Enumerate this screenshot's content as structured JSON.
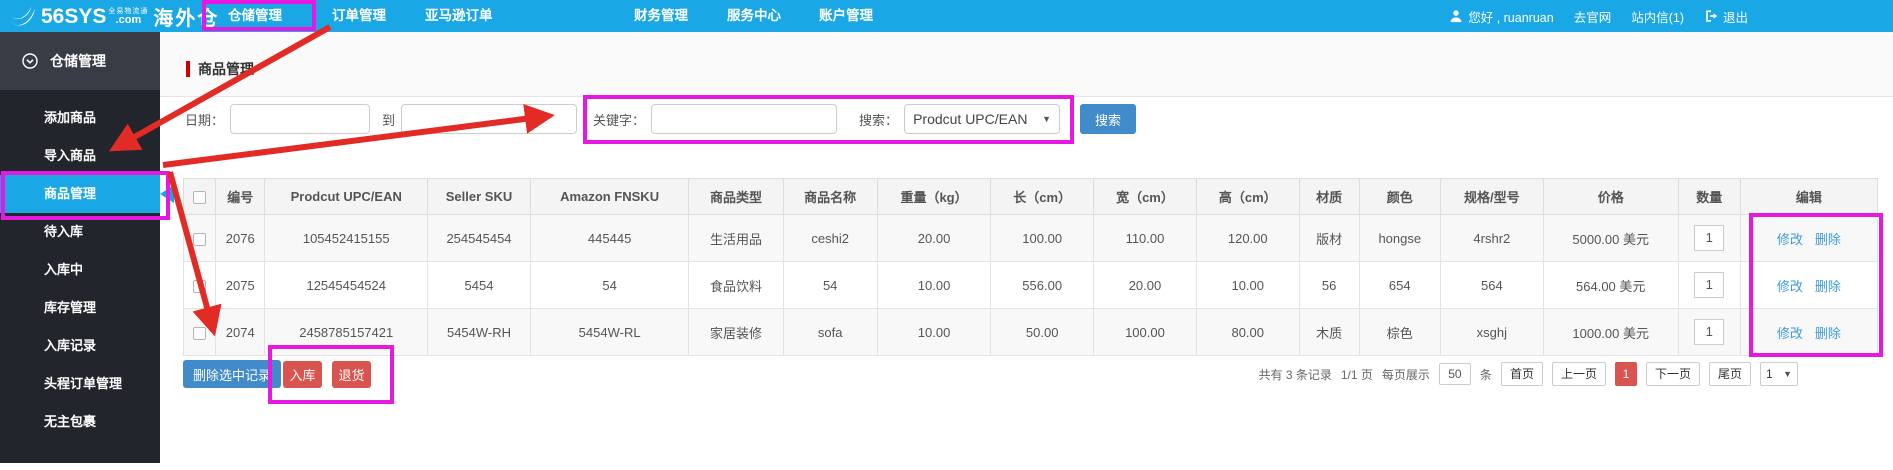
{
  "topbar": {
    "logo": {
      "brand": "56SYS",
      "tagline": "全易物流通",
      "tld": ".com",
      "product": "海外仓"
    },
    "nav": [
      "仓储管理",
      "订单管理",
      "亚马逊订单",
      "财务管理",
      "服务中心",
      "账户管理"
    ],
    "user": {
      "greeting": "您好 , ruanruan",
      "site": "去官网",
      "messages": "站内信(1)",
      "logout": "退出"
    }
  },
  "sidebar": {
    "header": "仓储管理",
    "items": [
      "添加商品",
      "导入商品",
      "商品管理",
      "待入库",
      "入库中",
      "库存管理",
      "入库记录",
      "头程订单管理",
      "无主包裹"
    ],
    "active_item": "商品管理"
  },
  "page": {
    "title": "商品管理"
  },
  "filters": {
    "date_label": "日期：",
    "date_from": "",
    "to_label": "到",
    "date_to": "",
    "keyword_label": "关键字：",
    "keyword_value": "",
    "search_type_label": "搜索：",
    "search_type_value": "Prodcut UPC/EAN",
    "search_button": "搜索"
  },
  "table": {
    "headers": [
      "编号",
      "Prodcut UPC/EAN",
      "Seller SKU",
      "Amazon FNSKU",
      "商品类型",
      "商品名称",
      "重量（kg）",
      "长（cm）",
      "宽（cm）",
      "高（cm）",
      "材质",
      "颜色",
      "规格/型号",
      "价格",
      "数量",
      "编辑"
    ],
    "edit_links": {
      "modify": "修改",
      "remove": "删除"
    },
    "rows": [
      {
        "id": "2076",
        "upc": "105452415155",
        "seller_sku": "254545454",
        "fnsku": "445445",
        "type": "生活用品",
        "name": "ceshi2",
        "weight": "20.00",
        "length": "100.00",
        "width": "110.00",
        "height": "120.00",
        "material": "版材",
        "color": "hongse",
        "spec": "4rshr2",
        "price": "5000.00 美元",
        "qty": "1"
      },
      {
        "id": "2075",
        "upc": "12545454524",
        "seller_sku": "5454",
        "fnsku": "54",
        "type": "食品饮料",
        "name": "54",
        "weight": "10.00",
        "length": "556.00",
        "width": "20.00",
        "height": "10.00",
        "material": "56",
        "color": "654",
        "spec": "564",
        "price": "564.00 美元",
        "qty": "1"
      },
      {
        "id": "2074",
        "upc": "2458785157421",
        "seller_sku": "5454W-RH",
        "fnsku": "5454W-RL",
        "type": "家居装修",
        "name": "sofa",
        "weight": "10.00",
        "length": "50.00",
        "width": "100.00",
        "height": "80.00",
        "material": "木质",
        "color": "棕色",
        "spec": "xsghj",
        "price": "1000.00 美元",
        "qty": "1"
      }
    ]
  },
  "actions": {
    "delete_selected": "删除选中记录",
    "inbound": "入库",
    "returns": "退货"
  },
  "pagination": {
    "total": "共有 3 条记录",
    "page_info": "1/1 页",
    "per_page_label": "每页展示",
    "per_page_value": "50",
    "per_page_unit": "条",
    "first": "首页",
    "prev": "上一页",
    "current_page": "1",
    "next": "下一页",
    "last": "尾页",
    "jump_value": "1"
  },
  "colors": {
    "topbar_blue": "#1aa7e5",
    "primary_blue": "#428bca",
    "danger_red": "#d9534f",
    "sidebar_bg": "#22252c",
    "active_blue": "#1aa7e5",
    "annotation_pink": "#e619e0",
    "annotation_red": "#e22b25",
    "title_accent_red": "#cc0000"
  }
}
